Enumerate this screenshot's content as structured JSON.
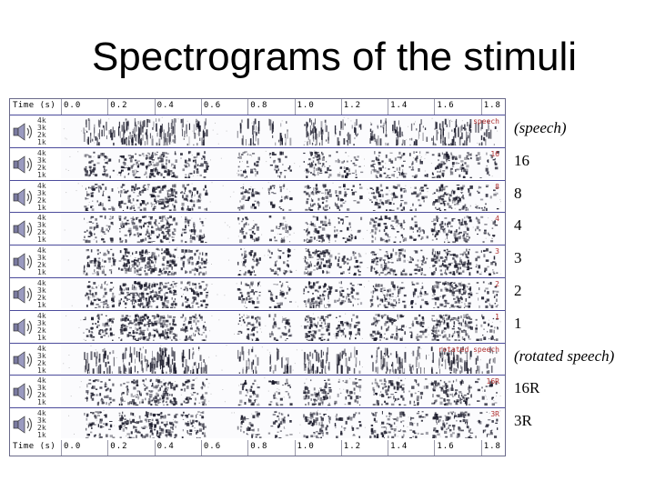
{
  "title": "Spectrograms of the stimuli",
  "axis": {
    "label": "Time (s)",
    "ticks": [
      "0.0",
      "0.2",
      "0.4",
      "0.6",
      "0.8",
      "1.0",
      "1.2",
      "1.4",
      "1.6",
      "1.8"
    ]
  },
  "freq_ticks": [
    "4k",
    "3k",
    "2k",
    "1k"
  ],
  "rows": [
    {
      "row_label": "speech",
      "condition": "(speech)",
      "italic": true
    },
    {
      "row_label": "16",
      "condition": "16",
      "italic": false
    },
    {
      "row_label": "8",
      "condition": "8",
      "italic": false
    },
    {
      "row_label": "4",
      "condition": "4",
      "italic": false
    },
    {
      "row_label": "3",
      "condition": "3",
      "italic": false
    },
    {
      "row_label": "2",
      "condition": "2",
      "italic": false
    },
    {
      "row_label": "1",
      "condition": "1",
      "italic": false
    },
    {
      "row_label": "rotated speech",
      "condition": "(rotated speech)",
      "italic": true
    },
    {
      "row_label": "16R",
      "condition": "16R",
      "italic": false
    },
    {
      "row_label": "3R",
      "condition": "3R",
      "italic": false
    }
  ],
  "icons": {
    "row_icon": "speaker-icon"
  },
  "colors": {
    "spectrogram": "#1a1a2a",
    "row_divider": "#4b4b9b",
    "row_label": "#b03030"
  }
}
